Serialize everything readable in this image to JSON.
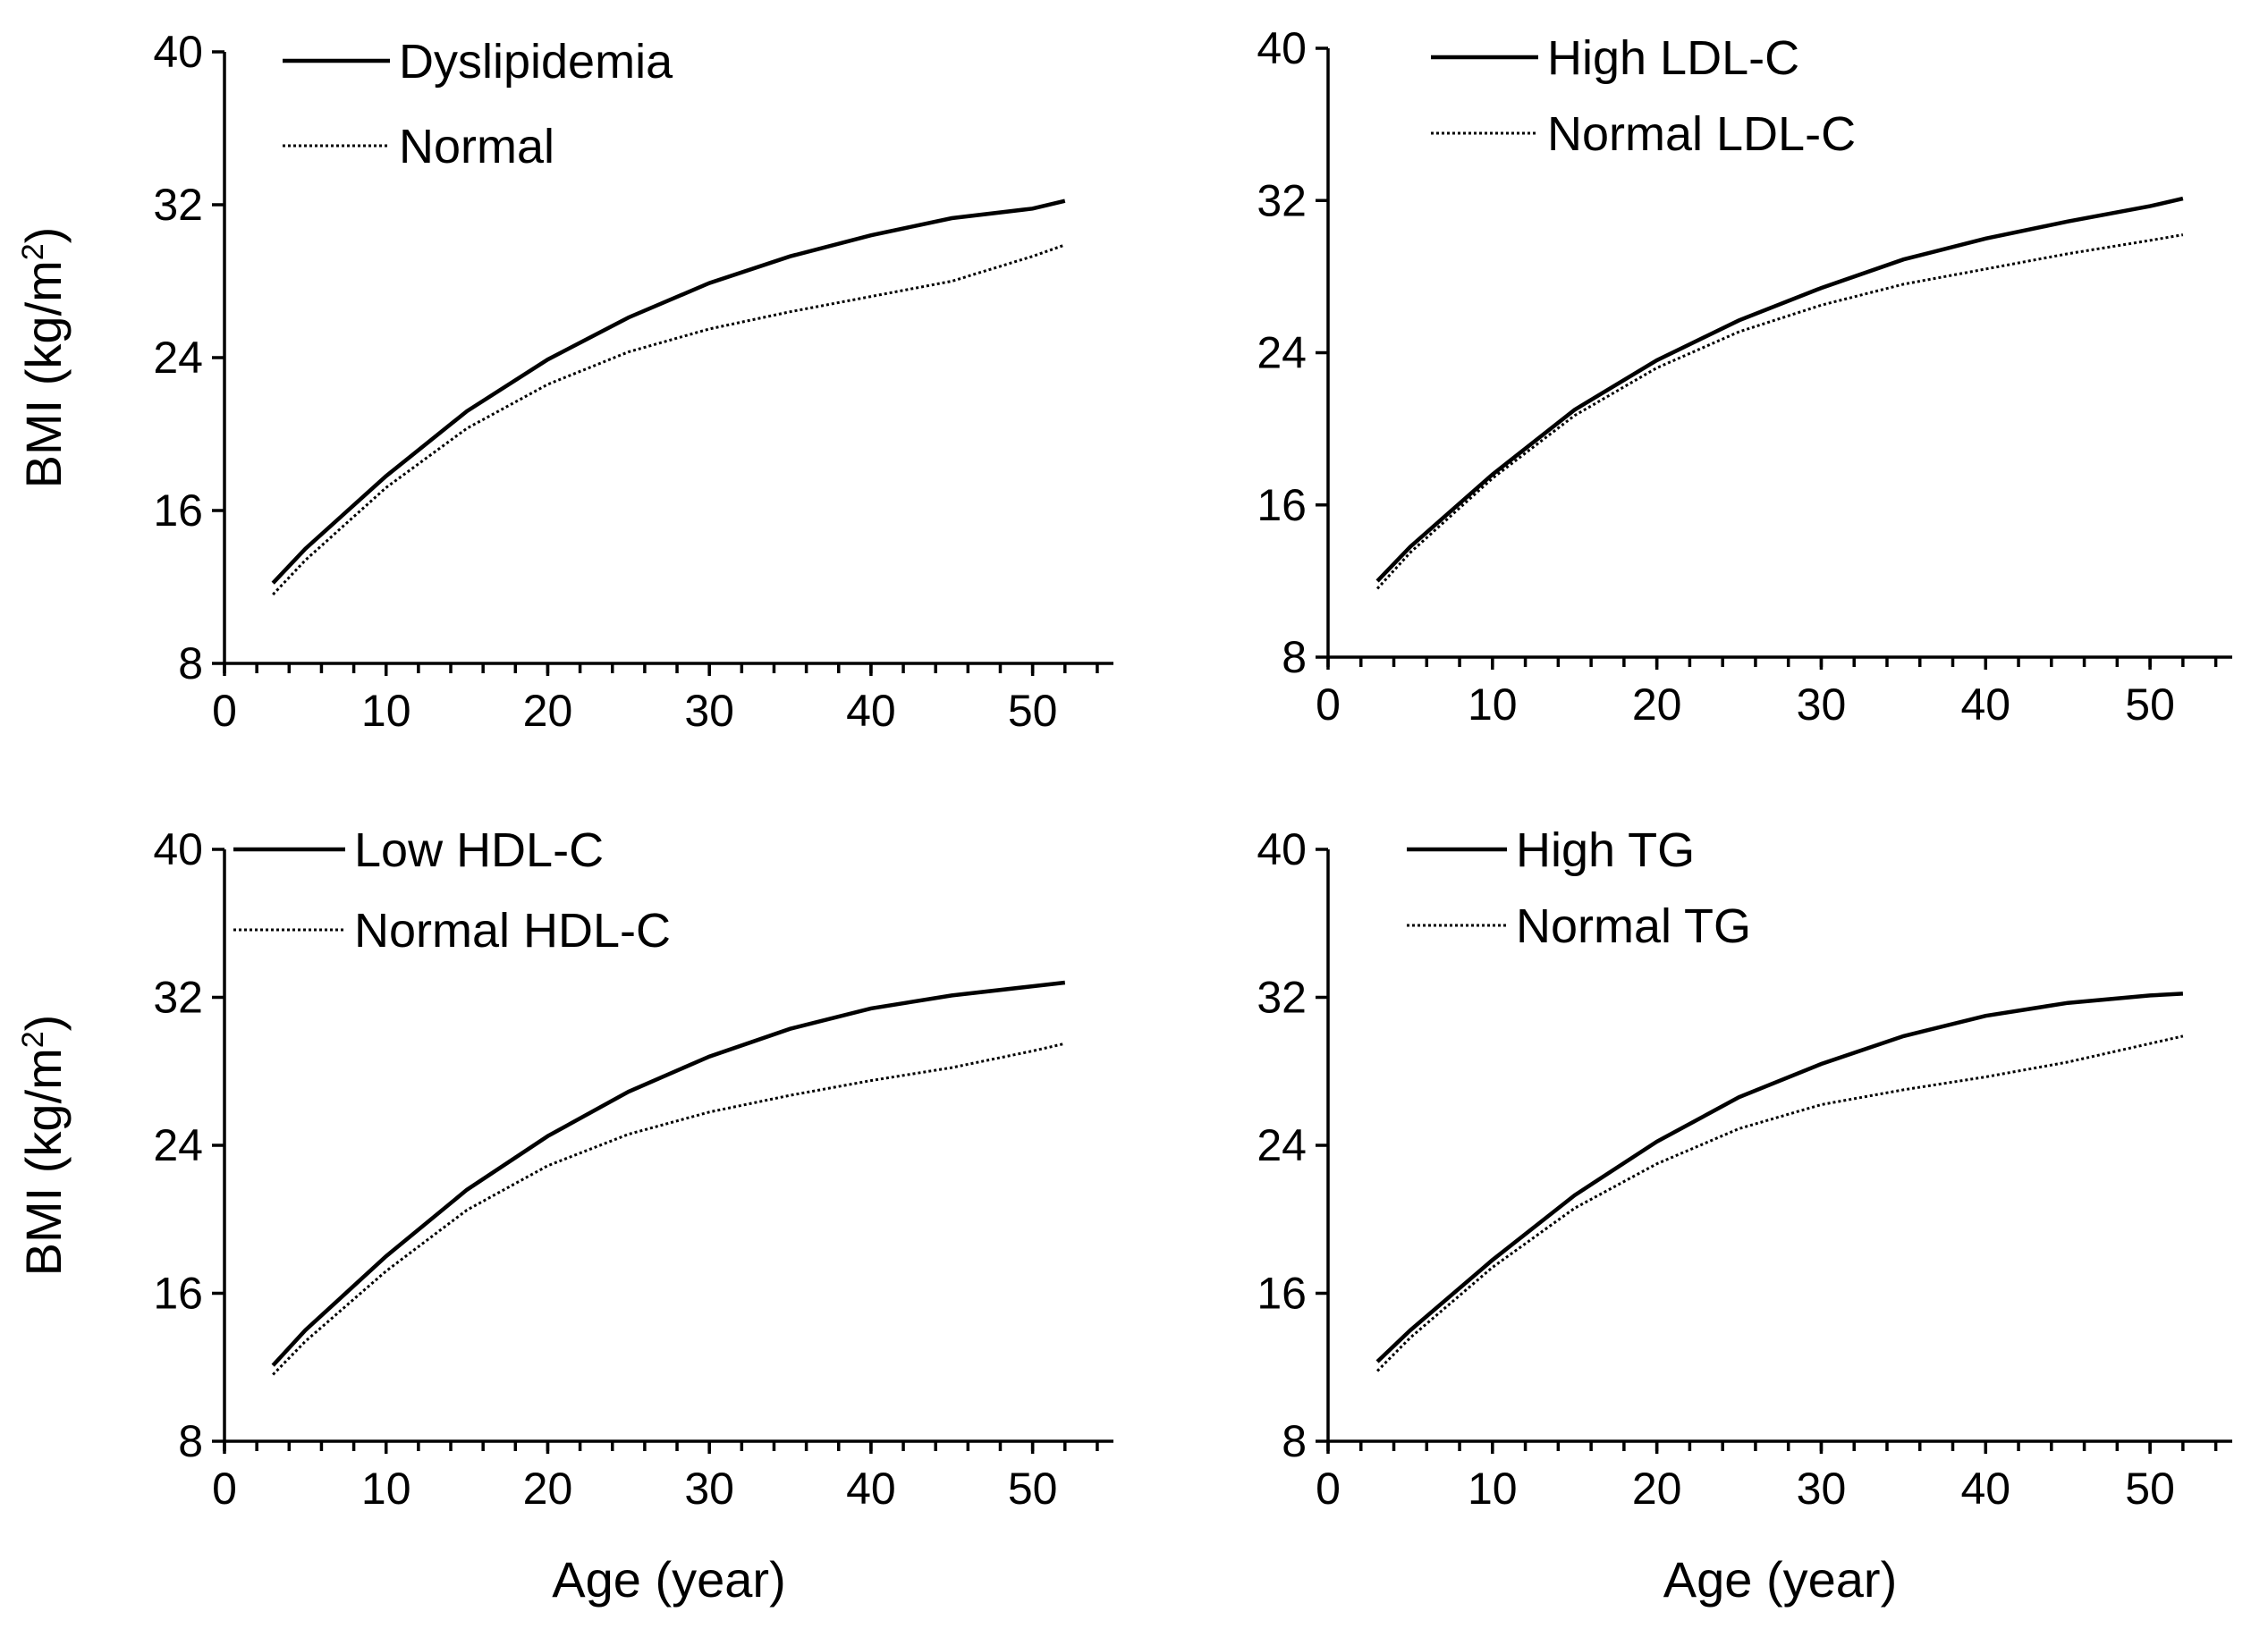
{
  "chart_data": [
    {
      "type": "line",
      "x": [
        3,
        5,
        10,
        15,
        20,
        25,
        30,
        35,
        40,
        45,
        50,
        52
      ],
      "series": [
        {
          "name": "Dyslipidemia",
          "style": "solid",
          "values": [
            12.2,
            14.0,
            17.8,
            21.2,
            23.9,
            26.1,
            27.9,
            29.3,
            30.4,
            31.3,
            31.8,
            32.2
          ]
        },
        {
          "name": "Normal",
          "style": "dotted",
          "values": [
            11.6,
            13.4,
            17.2,
            20.3,
            22.6,
            24.3,
            25.5,
            26.4,
            27.2,
            28.0,
            29.3,
            29.9
          ]
        }
      ],
      "xlabel": "",
      "ylabel": "BMI (kg/m²)",
      "xlim": [
        0,
        55
      ],
      "ylim": [
        8,
        40
      ],
      "xticks": [
        0,
        10,
        20,
        30,
        40,
        50
      ],
      "yticks": [
        8,
        16,
        24,
        32,
        40
      ],
      "legend": "top-left"
    },
    {
      "type": "line",
      "x": [
        3,
        5,
        10,
        15,
        20,
        25,
        30,
        35,
        40,
        45,
        50,
        52
      ],
      "series": [
        {
          "name": "High LDL-C",
          "style": "solid",
          "values": [
            12.0,
            13.8,
            17.6,
            21.0,
            23.6,
            25.7,
            27.4,
            28.9,
            30.0,
            30.9,
            31.7,
            32.1
          ]
        },
        {
          "name": "Normal LDL-C",
          "style": "dotted",
          "values": [
            11.6,
            13.5,
            17.4,
            20.7,
            23.2,
            25.1,
            26.5,
            27.6,
            28.4,
            29.2,
            29.9,
            30.2
          ]
        }
      ],
      "xlabel": "",
      "ylabel": "",
      "xlim": [
        0,
        55
      ],
      "ylim": [
        8,
        40
      ],
      "xticks": [
        0,
        10,
        20,
        30,
        40,
        50
      ],
      "yticks": [
        8,
        16,
        24,
        32,
        40
      ],
      "legend": "top-left"
    },
    {
      "type": "line",
      "x": [
        3,
        5,
        10,
        15,
        20,
        25,
        30,
        35,
        40,
        45,
        50,
        52
      ],
      "series": [
        {
          "name": "Low HDL-C",
          "style": "solid",
          "values": [
            12.1,
            14.0,
            18.0,
            21.6,
            24.5,
            26.9,
            28.8,
            30.3,
            31.4,
            32.1,
            32.6,
            32.8
          ]
        },
        {
          "name": "Normal HDL-C",
          "style": "dotted",
          "values": [
            11.6,
            13.4,
            17.2,
            20.5,
            22.9,
            24.6,
            25.8,
            26.7,
            27.5,
            28.2,
            29.1,
            29.5
          ]
        }
      ],
      "xlabel": "Age (year)",
      "ylabel": "BMI (kg/m²)",
      "xlim": [
        0,
        55
      ],
      "ylim": [
        8,
        40
      ],
      "xticks": [
        0,
        10,
        20,
        30,
        40,
        50
      ],
      "yticks": [
        8,
        16,
        24,
        32,
        40
      ],
      "legend": "top-left"
    },
    {
      "type": "line",
      "x": [
        3,
        5,
        10,
        15,
        20,
        25,
        30,
        35,
        40,
        45,
        50,
        52
      ],
      "series": [
        {
          "name": "High TG",
          "style": "solid",
          "values": [
            12.3,
            14.0,
            17.8,
            21.3,
            24.2,
            26.6,
            28.4,
            29.9,
            31.0,
            31.7,
            32.1,
            32.2
          ]
        },
        {
          "name": "Normal TG",
          "style": "dotted",
          "values": [
            11.8,
            13.6,
            17.4,
            20.6,
            23.0,
            24.9,
            26.2,
            27.0,
            27.7,
            28.5,
            29.5,
            29.9
          ]
        }
      ],
      "xlabel": "Age (year)",
      "ylabel": "",
      "xlim": [
        0,
        55
      ],
      "ylim": [
        8,
        40
      ],
      "xticks": [
        0,
        10,
        20,
        30,
        40,
        50
      ],
      "yticks": [
        8,
        16,
        24,
        32,
        40
      ],
      "legend": "top-left"
    }
  ]
}
